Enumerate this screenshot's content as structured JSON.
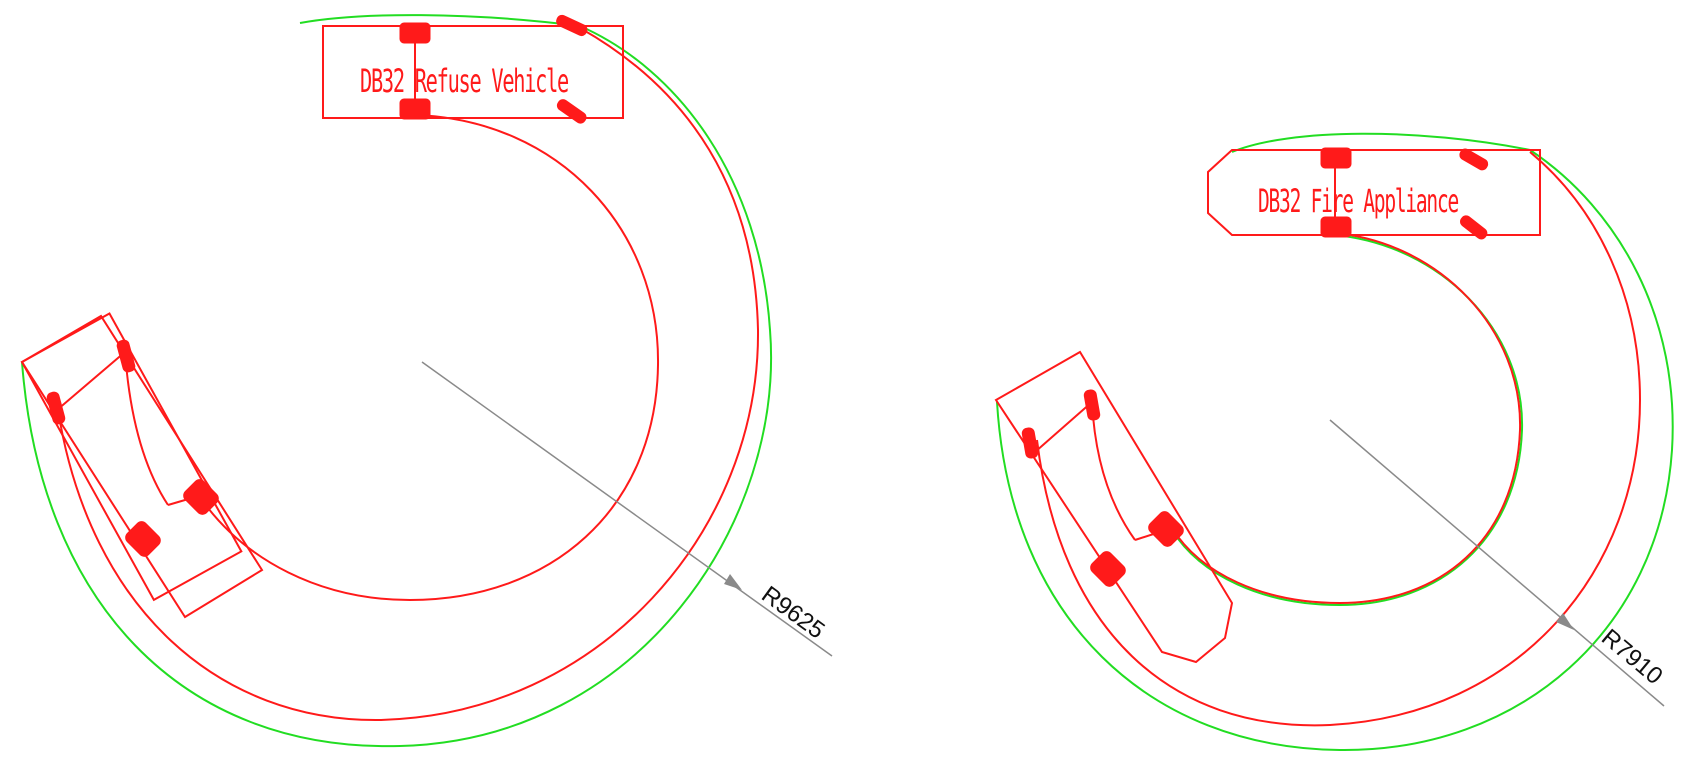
{
  "drawings": [
    {
      "id": "refuse",
      "vehicle_label": "DB32 Refuse Vehicle",
      "radius_label": "R9625"
    },
    {
      "id": "fire",
      "vehicle_label": "DB32 Fire Appliance",
      "radius_label": "R7910"
    }
  ],
  "colors": {
    "vehicle_path": "#ff1a1a",
    "swept_envelope": "#22dd22",
    "dimension_line": "#8a8a8a",
    "background": "#ffffff"
  }
}
